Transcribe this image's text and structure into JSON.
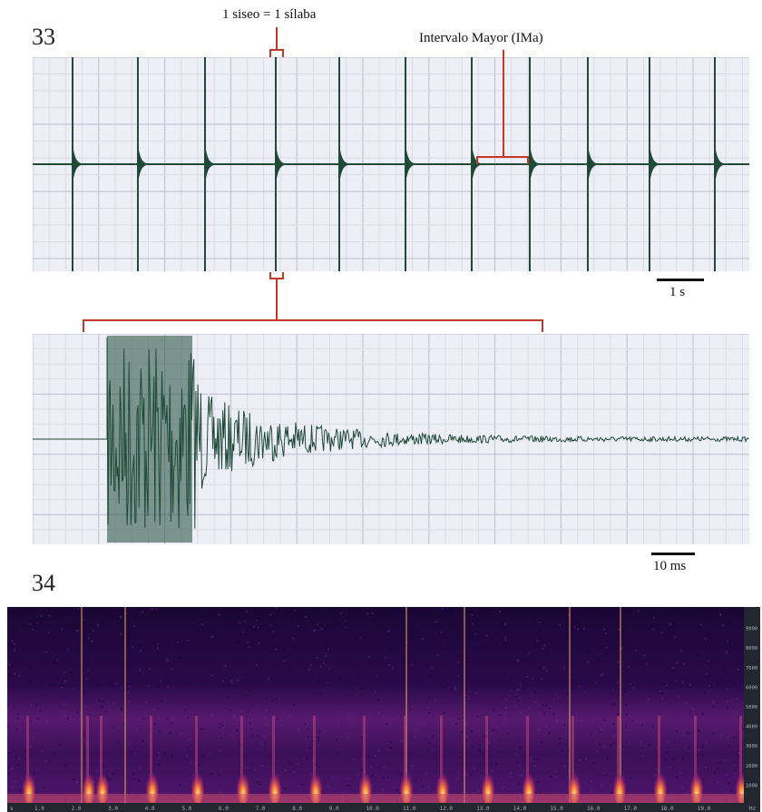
{
  "figure": {
    "panel_33_label": "33",
    "panel_34_label": "34"
  },
  "annotations": {
    "syllable": "1 siseo = 1 sílaba",
    "interval": "Intervalo Mayor (IMa)"
  },
  "scale_bars": {
    "oscillogram": "1 s",
    "zoom": "10 ms"
  },
  "colors": {
    "waveform": "#1f4a38",
    "annotation": "#c0392b",
    "grid_major": "#b9bcd0",
    "grid_minor": "#d9dbe8",
    "panel_bg": "#eeeef6",
    "spectro_bg": "#1d0838"
  },
  "spectrogram": {
    "time_axis": [
      "1.0",
      "2.0",
      "3.0",
      "4.0",
      "5.0",
      "6.0",
      "7.0",
      "8.0",
      "9.0",
      "10.0",
      "11.0",
      "12.0",
      "13.0",
      "14.0",
      "15.0",
      "16.0",
      "17.0",
      "18.0",
      "19.0"
    ],
    "time_unit": "s",
    "freq_axis": [
      "1000",
      "2000",
      "3000",
      "4000",
      "5000",
      "6000",
      "7000",
      "8000",
      "9000"
    ],
    "freq_unit": "Hz"
  }
}
